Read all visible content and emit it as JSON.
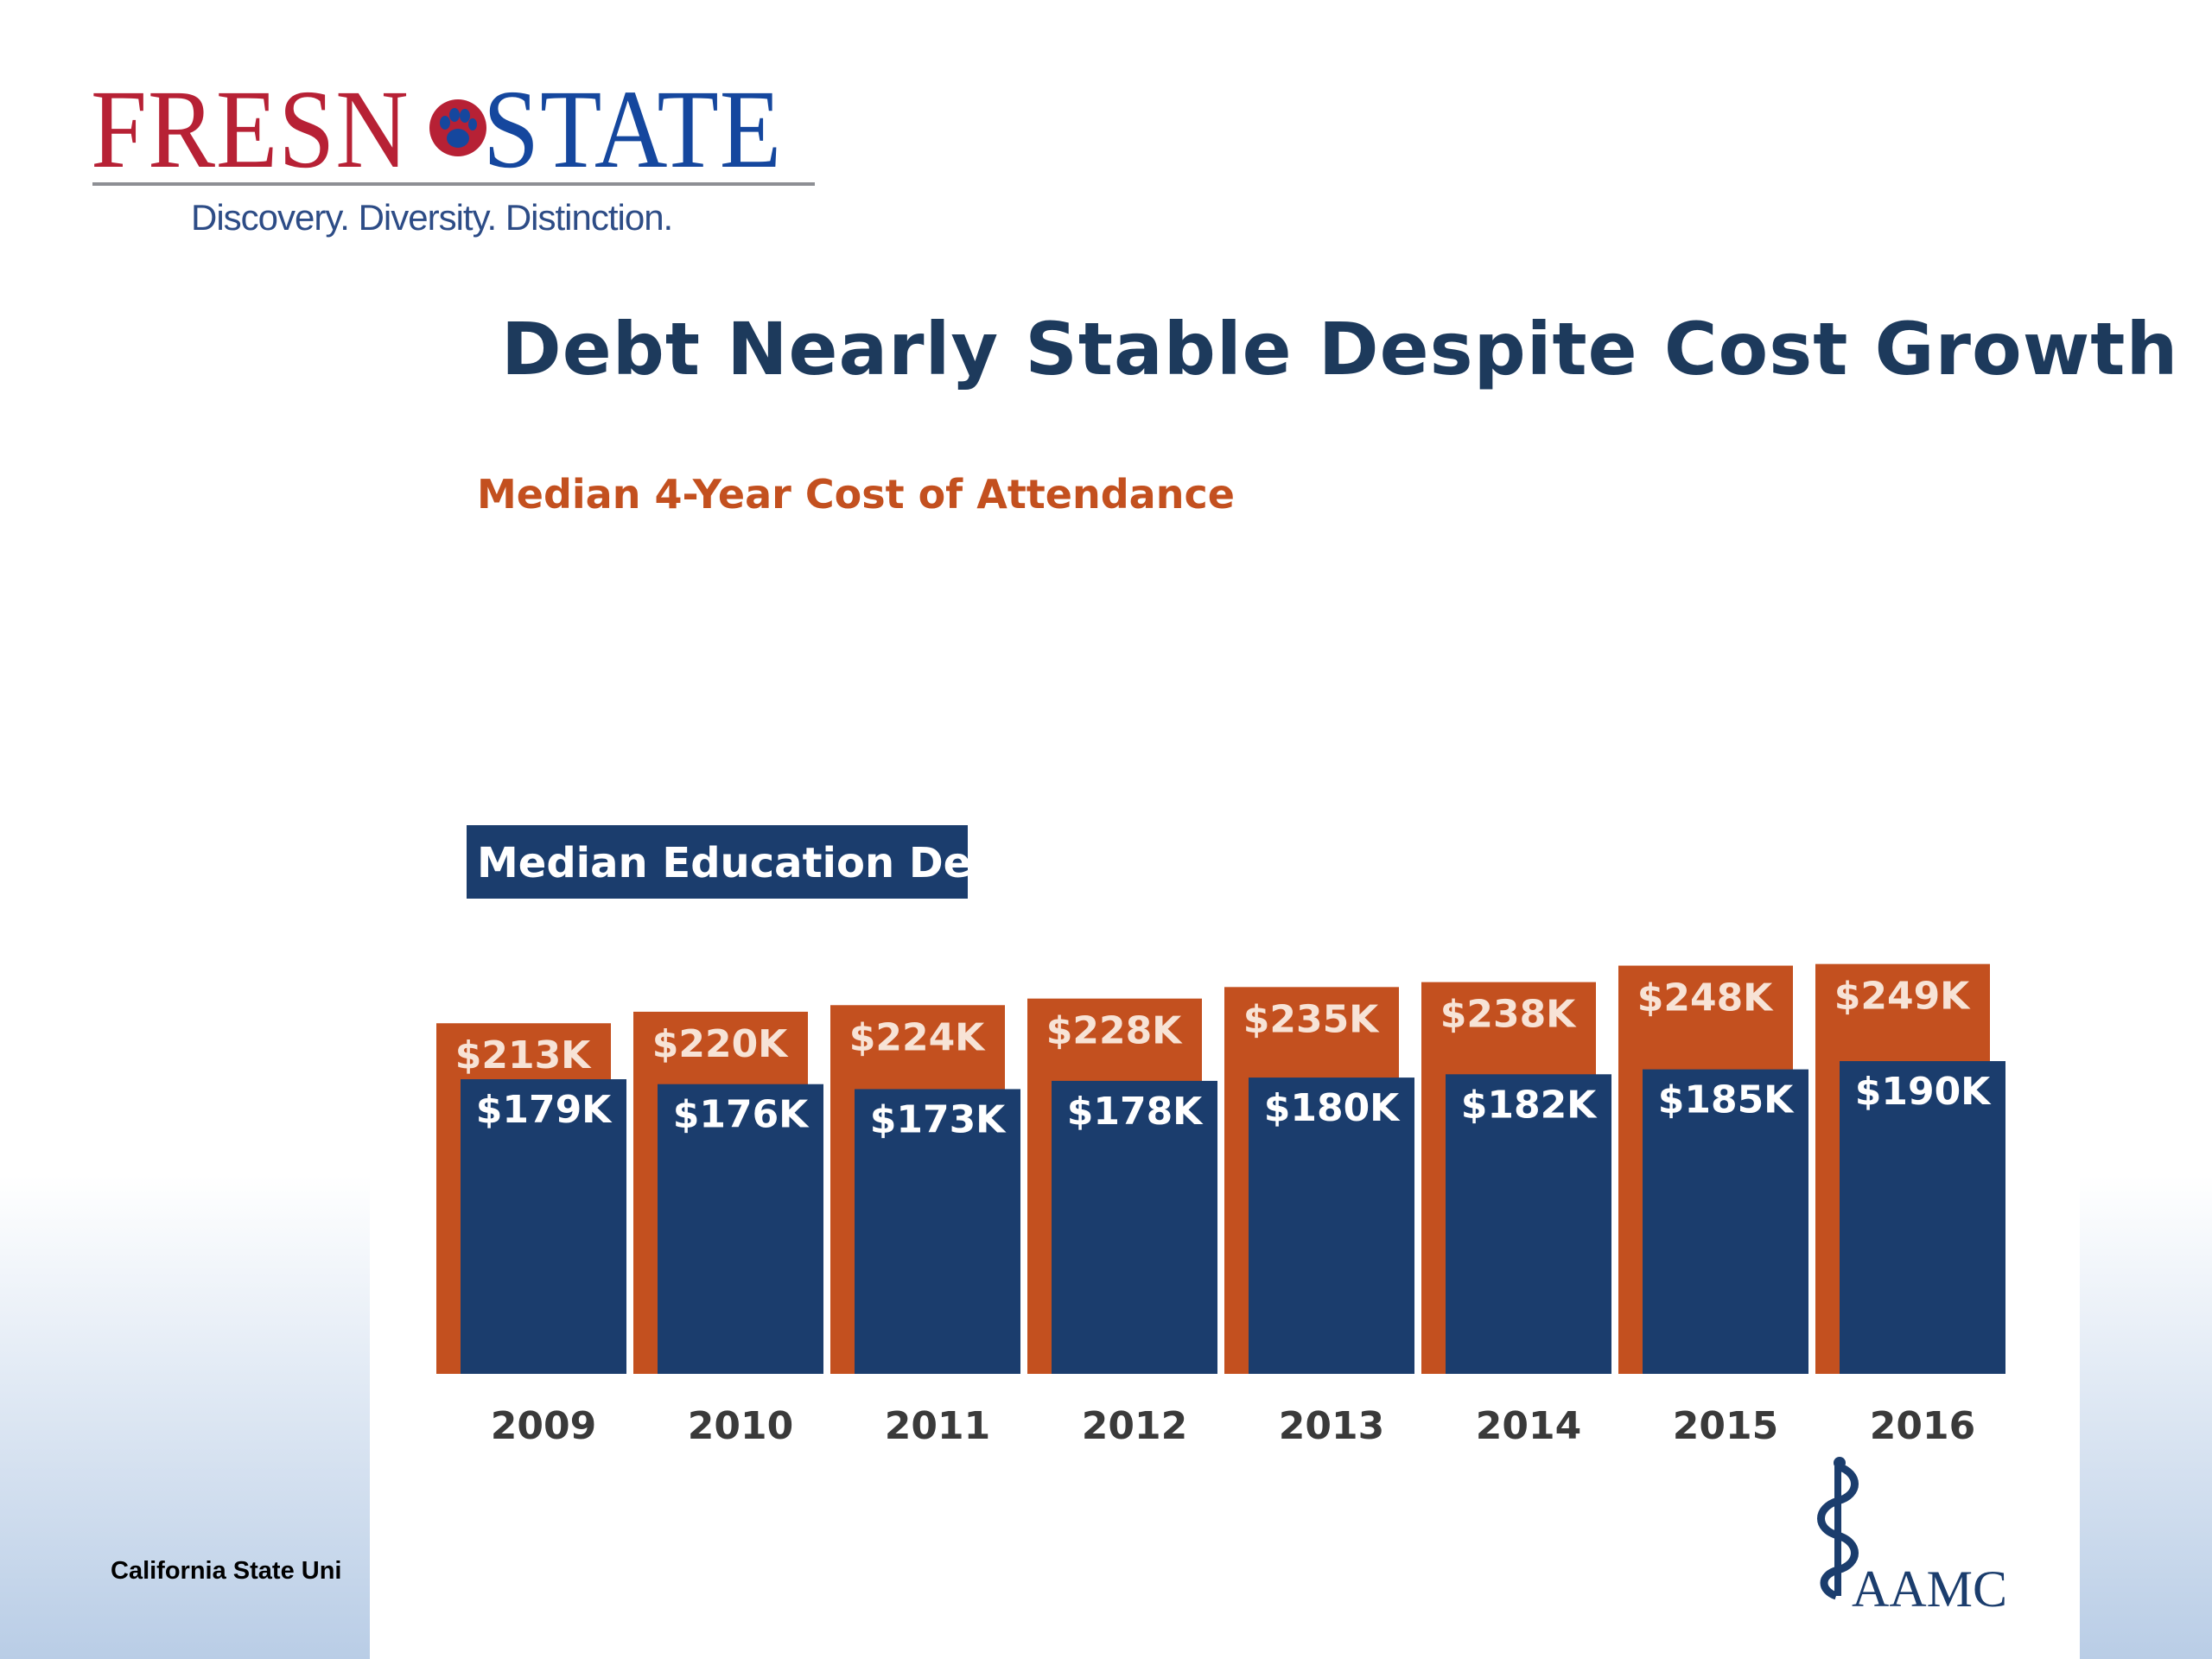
{
  "logo": {
    "name_part1": "FRESN",
    "name_part2": "STATE",
    "tagline": "Discovery. Diversity. Distinction.",
    "paw_icon": "paw-icon",
    "colors": {
      "red": "#b72135",
      "blue": "#15479e"
    }
  },
  "footer": {
    "text": "California State Uni"
  },
  "chart_data": {
    "type": "bar",
    "title": "Debt Nearly Stable Despite Cost Growth",
    "categories": [
      "2009",
      "2010",
      "2011",
      "2012",
      "2013",
      "2014",
      "2015",
      "2016"
    ],
    "series": [
      {
        "name": "Median 4-Year Cost of Attendance",
        "values": [
          213,
          220,
          224,
          228,
          235,
          238,
          248,
          249
        ],
        "labels": [
          "$213K",
          "$220K",
          "$224K",
          "$228K",
          "$235K",
          "$238K",
          "$248K",
          "$249K"
        ],
        "color": "#c3501f"
      },
      {
        "name": "Median Education Debt",
        "values": [
          179,
          176,
          173,
          178,
          180,
          182,
          185,
          190
        ],
        "labels": [
          "$179K",
          "$176K",
          "$173K",
          "$178K",
          "$180K",
          "$182K",
          "$185K",
          "$190K"
        ],
        "color": "#1b3d6d"
      }
    ],
    "units": "thousands of dollars",
    "ylim": [
      0,
      249
    ],
    "grid": false,
    "legend": "inline labels"
  },
  "source": {
    "logo_text": "AAMC",
    "icon": "caduceus-icon"
  }
}
